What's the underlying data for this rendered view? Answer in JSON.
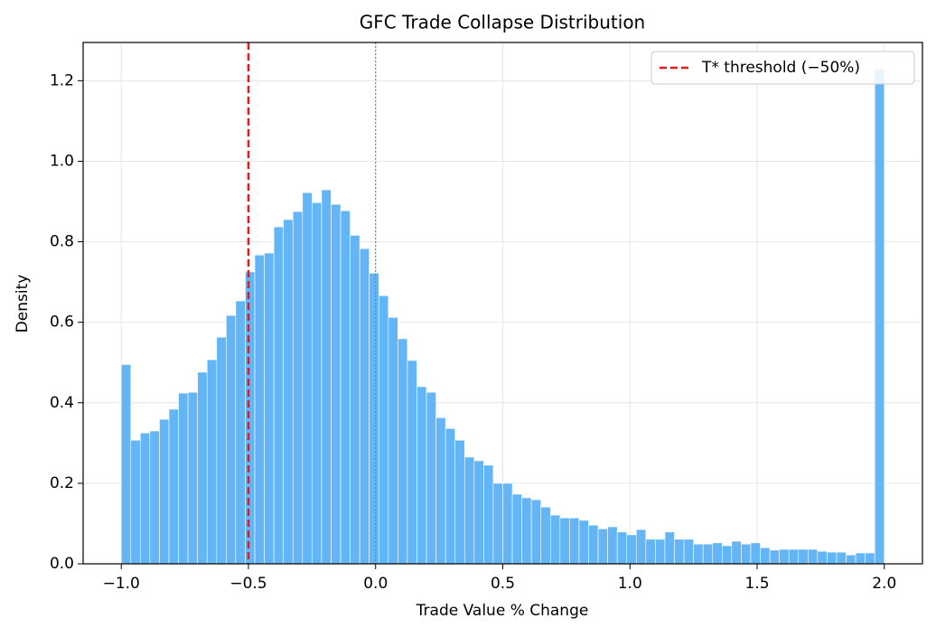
{
  "chart_data": {
    "type": "histogram",
    "title": "GFC Trade Collapse Distribution",
    "x_label": "Trade Value % Change",
    "y_label": "Density",
    "bins": [
      -1,
      -0.9625,
      -0.925,
      -0.8875,
      -0.85,
      -0.8125,
      -0.775,
      -0.7375,
      -0.7,
      -0.6625,
      -0.625,
      -0.5875,
      -0.55,
      -0.5125,
      -0.475,
      -0.4375,
      -0.4,
      -0.3625,
      -0.325,
      -0.2875,
      -0.25,
      -0.2125,
      -0.175,
      -0.1375,
      -0.1,
      -0.0625,
      -0.025,
      0.0125,
      0.05,
      0.0875,
      0.125,
      0.1625,
      0.2,
      0.2375,
      0.275,
      0.3125,
      0.35,
      0.3875,
      0.425,
      0.4625,
      0.5,
      0.5375,
      0.575,
      0.6125,
      0.65,
      0.6875,
      0.725,
      0.7625,
      0.8,
      0.8375,
      0.875,
      0.9125,
      0.95,
      0.9875,
      1.025,
      1.0625,
      1.1,
      1.1375,
      1.175,
      1.2125,
      1.25,
      1.2875,
      1.325,
      1.3625,
      1.4,
      1.4375,
      1.475,
      1.5125,
      1.55,
      1.5875,
      1.625,
      1.6625,
      1.7,
      1.7375,
      1.775,
      1.8125,
      1.85,
      1.8875,
      1.925,
      1.9625,
      2
    ],
    "values": [
      0.495,
      0.307,
      0.325,
      0.33,
      0.359,
      0.384,
      0.424,
      0.426,
      0.476,
      0.507,
      0.563,
      0.617,
      0.653,
      0.725,
      0.767,
      0.772,
      0.837,
      0.855,
      0.875,
      0.922,
      0.897,
      0.929,
      0.893,
      0.877,
      0.816,
      0.783,
      0.722,
      0.666,
      0.612,
      0.559,
      0.505,
      0.44,
      0.426,
      0.363,
      0.336,
      0.307,
      0.265,
      0.256,
      0.245,
      0.2,
      0.2,
      0.173,
      0.164,
      0.159,
      0.141,
      0.121,
      0.114,
      0.114,
      0.108,
      0.096,
      0.087,
      0.092,
      0.079,
      0.072,
      0.085,
      0.061,
      0.061,
      0.079,
      0.061,
      0.061,
      0.049,
      0.049,
      0.052,
      0.045,
      0.056,
      0.049,
      0.052,
      0.04,
      0.034,
      0.036,
      0.036,
      0.036,
      0.036,
      0.031,
      0.029,
      0.029,
      0.022,
      0.027,
      0.027,
      1.23
    ],
    "color": "#64b5f6",
    "xlim": [
      -1.15,
      2.15
    ],
    "ylim": [
      0,
      1.295
    ],
    "xticks": [
      {
        "value": -1,
        "label": "−1.0"
      },
      {
        "value": -0.5,
        "label": "−0.5"
      },
      {
        "value": 0,
        "label": "0.0"
      },
      {
        "value": 0.5,
        "label": "0.5"
      },
      {
        "value": 1,
        "label": "1.0"
      },
      {
        "value": 1.5,
        "label": "1.5"
      },
      {
        "value": 2,
        "label": "2.0"
      }
    ],
    "yticks": [
      {
        "value": 0,
        "label": "0.0"
      },
      {
        "value": 0.2,
        "label": "0.2"
      },
      {
        "value": 0.4,
        "label": "0.4"
      },
      {
        "value": 0.6,
        "label": "0.6"
      },
      {
        "value": 0.8,
        "label": "0.8"
      },
      {
        "value": 1,
        "label": "1.0"
      },
      {
        "value": 1.2,
        "label": "1.2"
      }
    ],
    "grid": true,
    "vlines": [
      {
        "x": -0.5,
        "color": "#e31a1c",
        "style": "dashed",
        "label": "T* threshold (−50%)"
      },
      {
        "x": 0,
        "color": "#808080",
        "style": "dotted"
      }
    ],
    "legend_position": "upper-right"
  }
}
